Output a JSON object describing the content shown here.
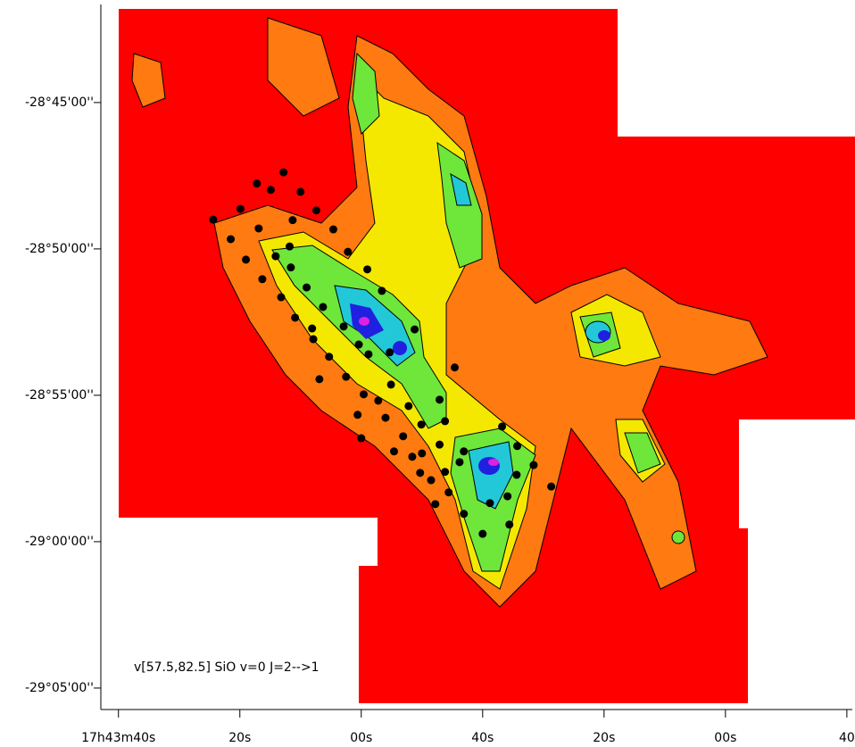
{
  "chart_data": {
    "type": "scatter",
    "annotation": "v[57.5,82.5]   SiO v=0 J=2-->1",
    "xlim": [
      2622.9,
      2499.1
    ],
    "ylim": [
      -104744,
      -103299
    ],
    "xticks": [
      {
        "value": 2620,
        "label": "17h43m40s"
      },
      {
        "value": 2600,
        "label": "20s"
      },
      {
        "value": 2580,
        "label": "00s"
      },
      {
        "value": 2560,
        "label": "40s"
      },
      {
        "value": 2540,
        "label": "20s"
      },
      {
        "value": 2520,
        "label": "00s"
      },
      {
        "value": 2500,
        "label": "40"
      }
    ],
    "yticks": [
      {
        "value": -103500,
        "label": "-28°45'00''"
      },
      {
        "value": -103800,
        "label": "-28°50'00''"
      },
      {
        "value": -104100,
        "label": "-28°55'00''"
      },
      {
        "value": -104400,
        "label": "-29°00'00''"
      },
      {
        "value": -104700,
        "label": "-29°05'00''"
      }
    ],
    "color": "#000000",
    "x": [
      2592.8,
      2597.2,
      2594.9,
      2590.0,
      2599.9,
      2591.3,
      2587.4,
      2604.4,
      2596.9,
      2601.5,
      2584.6,
      2591.8,
      2594.1,
      2599.0,
      2582.2,
      2579.0,
      2591.6,
      2596.3,
      2589.0,
      2593.2,
      2576.6,
      2586.3,
      2590.9,
      2582.9,
      2588.1,
      2587.9,
      2580.4,
      2571.2,
      2585.3,
      2575.3,
      2578.8,
      2564.6,
      2586.9,
      2582.5,
      2575.1,
      2579.6,
      2572.2,
      2577.2,
      2567.1,
      2576.0,
      2580.6,
      2566.2,
      2580.0,
      2573.1,
      2570.1,
      2567.1,
      2563.1,
      2556.8,
      2570.0,
      2574.6,
      2566.2,
      2554.3,
      2551.6,
      2571.6,
      2570.3,
      2563.8,
      2565.6,
      2554.4,
      2548.7,
      2568.5,
      2555.9,
      2558.8,
      2567.8,
      2563.1,
      2555.6,
      2560.0
    ],
    "values": [
      -103643,
      -103666,
      -103679,
      -103683,
      -103718,
      -103741,
      -103721,
      -103740,
      -103758,
      -103780,
      -103760,
      -103795,
      -103815,
      -103822,
      -103806,
      -103842,
      -103838,
      -103862,
      -103879,
      -103899,
      -103886,
      -103919,
      -103941,
      -103959,
      -103963,
      -103985,
      -103996,
      -103965,
      -104021,
      -104012,
      -104016,
      -104043,
      -104067,
      -104062,
      -104078,
      -104098,
      -104122,
      -104111,
      -104109,
      -104146,
      -104140,
      -104153,
      -104188,
      -104184,
      -104160,
      -104201,
      -104215,
      -104164,
      -104219,
      -104215,
      -104257,
      -104204,
      -104243,
      -104226,
      -104259,
      -104237,
      -104299,
      -104263,
      -104287,
      -104274,
      -104307,
      -104321,
      -104323,
      -104343,
      -104365,
      -104384
    ]
  }
}
